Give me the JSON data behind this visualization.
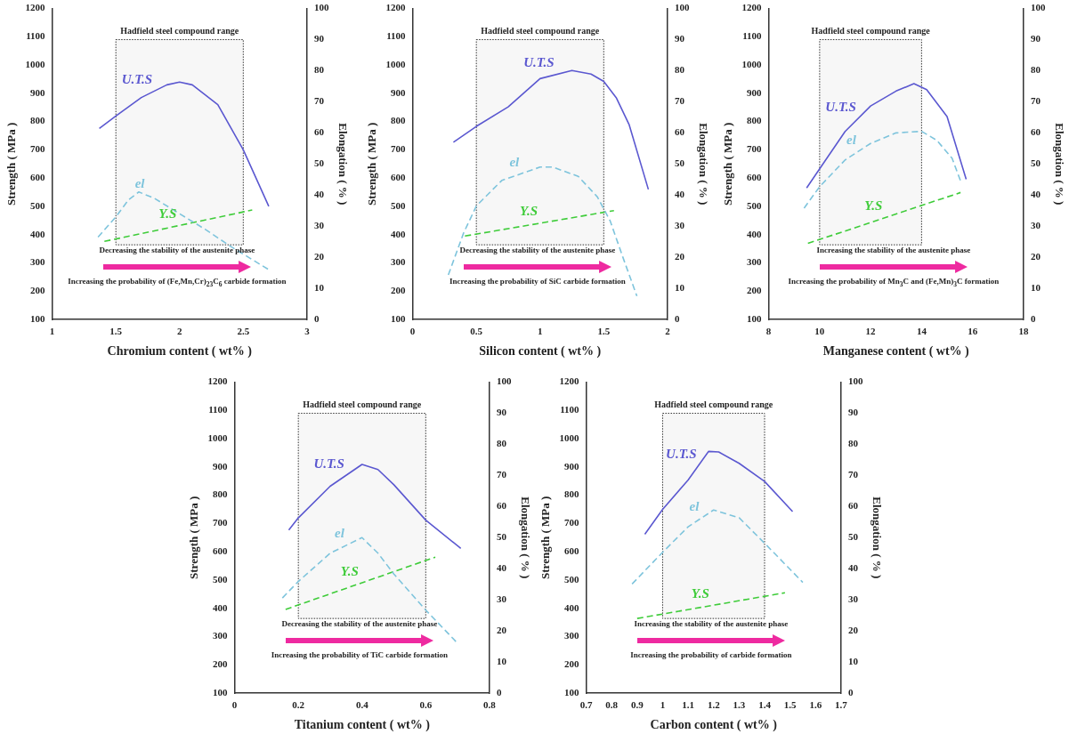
{
  "chart_data": [
    {
      "type": "line",
      "xlabel": "Chromium content ( wt% )",
      "ylabel": "Strength ( MPa )",
      "y2label": "Elongation ( % )",
      "xlim": [
        1,
        3
      ],
      "xticks": [
        1,
        1.5,
        2,
        2.5,
        3
      ],
      "ylim": [
        100,
        1200
      ],
      "yticks": [
        100,
        200,
        300,
        400,
        500,
        600,
        700,
        800,
        900,
        1000,
        1100,
        1200
      ],
      "y2lim": [
        0,
        100
      ],
      "y2ticks": [
        0,
        10,
        20,
        30,
        40,
        50,
        60,
        70,
        80,
        90,
        100
      ],
      "series": [
        {
          "name": "U.T.S",
          "color": "#5b58d0",
          "line_style": "solid",
          "x": [
            1.37,
            1.5,
            1.7,
            1.9,
            2.0,
            2.1,
            2.3,
            2.5,
            2.7
          ],
          "values": [
            776,
            820,
            885,
            930,
            940,
            930,
            860,
            700,
            500
          ]
        },
        {
          "name": "el",
          "color": "#7ec4dc",
          "line_style": "dashed",
          "axis": "y2",
          "x": [
            1.36,
            1.5,
            1.6,
            1.68,
            1.8,
            2.0,
            2.2,
            2.4,
            2.5,
            2.7
          ],
          "values": [
            26.5,
            33,
            38.5,
            41,
            39,
            34,
            29,
            23.5,
            21,
            16
          ]
        },
        {
          "name": "Y.S",
          "color": "#3fcc3a",
          "line_style": "dashed",
          "x": [
            1.41,
            2.57
          ],
          "values": [
            376,
            487
          ]
        }
      ],
      "bands": [
        {
          "axis": "x",
          "from": 1.5,
          "to": 2.5,
          "label": "Hadfield steel compound range"
        }
      ],
      "annotations": [
        "Decreasing the stability of the austenite phase",
        "Increasing the probability of (Fe,Mn,Cr)$_{23}$C$_{6}$ carbide formation"
      ]
    },
    {
      "type": "line",
      "xlabel": "Silicon content ( wt% )",
      "ylabel": "Strength ( MPa )",
      "y2label": "Elongation ( % )",
      "xlim": [
        0,
        2
      ],
      "xticks": [
        0,
        0.5,
        1,
        1.5,
        2
      ],
      "ylim": [
        100,
        1200
      ],
      "yticks": [
        100,
        200,
        300,
        400,
        500,
        600,
        700,
        800,
        900,
        1000,
        1100,
        1200
      ],
      "y2lim": [
        0,
        100
      ],
      "y2ticks": [
        0,
        10,
        20,
        30,
        40,
        50,
        60,
        70,
        80,
        90,
        100
      ],
      "series": [
        {
          "name": "U.T.S",
          "color": "#5b58d0",
          "line_style": "solid",
          "x": [
            0.32,
            0.5,
            0.75,
            1.0,
            1.25,
            1.4,
            1.5,
            1.6,
            1.7,
            1.85
          ],
          "values": [
            727,
            783,
            852,
            952,
            981,
            968,
            942,
            883,
            788,
            560
          ]
        },
        {
          "name": "el",
          "color": "#7ec4dc",
          "line_style": "dashed",
          "axis": "y2",
          "x": [
            0.28,
            0.4,
            0.5,
            0.7,
            1.0,
            1.1,
            1.3,
            1.45,
            1.55,
            1.65,
            1.76
          ],
          "values": [
            14.3,
            27.8,
            36.5,
            44.7,
            49,
            49,
            46,
            39.4,
            31.7,
            20,
            7.5
          ]
        },
        {
          "name": "Y.S",
          "color": "#3fcc3a",
          "line_style": "dashed",
          "x": [
            0.41,
            1.58
          ],
          "values": [
            395,
            485
          ]
        }
      ],
      "bands": [
        {
          "axis": "x",
          "from": 0.5,
          "to": 1.5,
          "label": "Hadfield steel compound range"
        }
      ],
      "annotations": [
        "Decreasing the stability of the austenite phase",
        "Increasing the probability of SiC carbide formation"
      ]
    },
    {
      "type": "line",
      "xlabel": "Manganese content ( wt% )",
      "ylabel": "Strength ( MPa )",
      "y2label": "Elongation ( % )",
      "xlim": [
        8,
        18
      ],
      "xticks": [
        8,
        10,
        12,
        14,
        16,
        18
      ],
      "ylim": [
        100,
        1200
      ],
      "yticks": [
        100,
        200,
        300,
        400,
        500,
        600,
        700,
        800,
        900,
        1000,
        1100,
        1200
      ],
      "y2lim": [
        0,
        100
      ],
      "y2ticks": [
        0,
        10,
        20,
        30,
        40,
        50,
        60,
        70,
        80,
        90,
        100
      ],
      "series": [
        {
          "name": "U.T.S",
          "color": "#5b58d0",
          "line_style": "solid",
          "x": [
            9.49,
            10,
            11,
            12,
            13,
            13.7,
            14.2,
            15,
            15.75
          ],
          "values": [
            565,
            633,
            765,
            855,
            908,
            934,
            913,
            818,
            596
          ]
        },
        {
          "name": "el",
          "color": "#7ec4dc",
          "line_style": "dashed",
          "axis": "y2",
          "x": [
            9.39,
            10,
            11,
            12,
            13,
            14,
            14.6,
            15.2,
            15.55
          ],
          "values": [
            35.8,
            42.7,
            51.3,
            56.6,
            60,
            60.5,
            57.6,
            51.8,
            44.1
          ]
        },
        {
          "name": "Y.S",
          "color": "#3fcc3a",
          "line_style": "dashed",
          "x": [
            9.54,
            15.53
          ],
          "values": [
            369,
            549
          ]
        }
      ],
      "bands": [
        {
          "axis": "x",
          "from": 10,
          "to": 14,
          "label": "Hadfield steel compound range"
        }
      ],
      "annotations": [
        "Increasing the stability of the austenite phase",
        "Increasing the probability of Mn$_{3}$C and (Fe,Mn)$_{3}$C formation"
      ]
    },
    {
      "type": "line",
      "xlabel": "Titanium content ( wt% )",
      "ylabel": "Strength ( MPa )",
      "y2label": "Elongation ( % )",
      "xlim": [
        0,
        0.8
      ],
      "xticks": [
        0,
        0.2,
        0.4,
        0.6,
        0.8
      ],
      "ylim": [
        100,
        1200
      ],
      "yticks": [
        100,
        200,
        300,
        400,
        500,
        600,
        700,
        800,
        900,
        1000,
        1100,
        1200
      ],
      "y2lim": [
        0,
        100
      ],
      "y2ticks": [
        0,
        10,
        20,
        30,
        40,
        50,
        60,
        70,
        80,
        90,
        100
      ],
      "series": [
        {
          "name": "U.T.S",
          "color": "#5b58d0",
          "line_style": "solid",
          "x": [
            0.17,
            0.2,
            0.3,
            0.4,
            0.45,
            0.5,
            0.6,
            0.71
          ],
          "values": [
            677,
            720,
            832,
            909,
            891,
            837,
            712,
            612
          ]
        },
        {
          "name": "el",
          "color": "#7ec4dc",
          "line_style": "dashed",
          "axis": "y2",
          "x": [
            0.15,
            0.2,
            0.3,
            0.4,
            0.45,
            0.5,
            0.6,
            0.7
          ],
          "values": [
            30.6,
            35.9,
            45,
            50,
            45,
            38.3,
            26.7,
            16
          ]
        },
        {
          "name": "Y.S",
          "color": "#3fcc3a",
          "line_style": "dashed",
          "x": [
            0.16,
            0.63
          ],
          "values": [
            396,
            581
          ]
        }
      ],
      "bands": [
        {
          "axis": "x",
          "from": 0.2,
          "to": 0.6,
          "label": "Hadfield steel compound range"
        }
      ],
      "annotations": [
        "Decreasing the stability of the austenite phase",
        "Increasing the probability of TiC carbide formation"
      ]
    },
    {
      "type": "line",
      "xlabel": "Carbon content ( wt% )",
      "ylabel": "Strength ( MPa )",
      "y2label": "Elongation ( % )",
      "xlim": [
        0.7,
        1.7
      ],
      "xticks": [
        0.7,
        0.8,
        0.9,
        1,
        1.1,
        1.2,
        1.3,
        1.4,
        1.5,
        1.6,
        1.7
      ],
      "ylim": [
        100,
        1200
      ],
      "yticks": [
        100,
        200,
        300,
        400,
        500,
        600,
        700,
        800,
        900,
        1000,
        1100,
        1200
      ],
      "y2lim": [
        0,
        100
      ],
      "y2ticks": [
        0,
        10,
        20,
        30,
        40,
        50,
        60,
        70,
        80,
        90,
        100
      ],
      "series": [
        {
          "name": "U.T.S",
          "color": "#5b58d0",
          "line_style": "solid",
          "x": [
            0.93,
            1.0,
            1.1,
            1.18,
            1.22,
            1.3,
            1.4,
            1.51
          ],
          "values": [
            662,
            750,
            854,
            955,
            953,
            913,
            849,
            742
          ]
        },
        {
          "name": "el",
          "color": "#7ec4dc",
          "line_style": "dashed",
          "axis": "y2",
          "x": [
            0.88,
            1.0,
            1.1,
            1.2,
            1.3,
            1.4,
            1.55
          ],
          "values": [
            35.1,
            45.3,
            53.5,
            58.9,
            56.4,
            48.2,
            35.6
          ]
        },
        {
          "name": "Y.S",
          "color": "#3fcc3a",
          "line_style": "dashed",
          "x": [
            0.9,
            1.48
          ],
          "values": [
            364,
            455
          ]
        }
      ],
      "bands": [
        {
          "axis": "x",
          "from": 1.0,
          "to": 1.4,
          "label": "Hadfield steel compound range"
        }
      ],
      "annotations": [
        "Increasing the stability of the austenite phase",
        "Increasing the probability of carbide formation"
      ]
    }
  ]
}
